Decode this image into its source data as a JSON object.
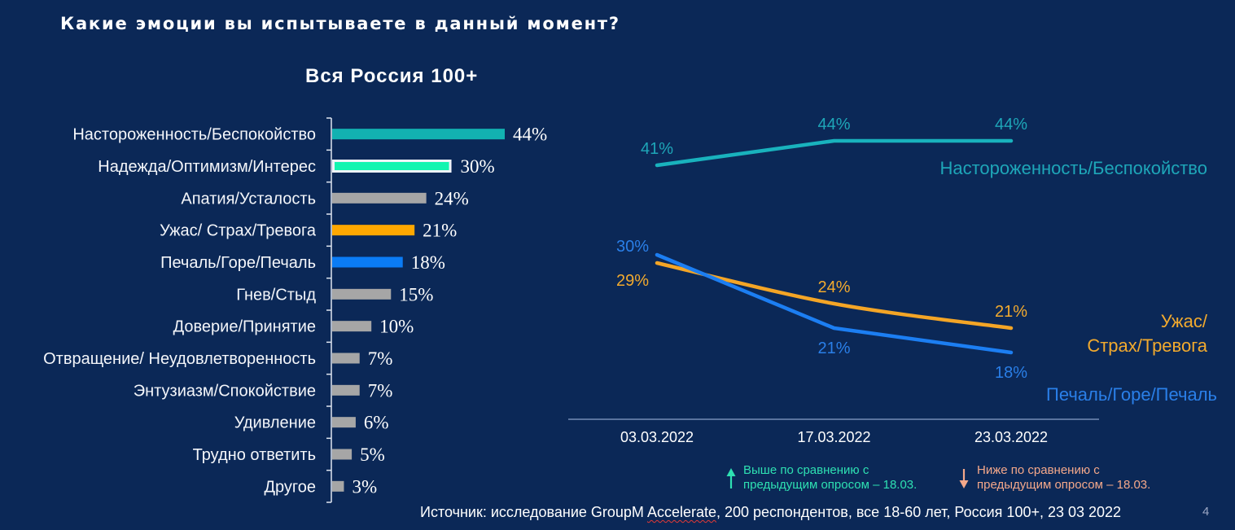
{
  "slide": {
    "title": "Какие эмоции вы испытываете в данный момент?",
    "source_prefix": "Источник: исследование GroupM ",
    "source_underlined": "Accelerate",
    "source_suffix": ", 200 респондентов, все 18-60 лет, Россия 100+, 23 03 2022",
    "page_number": "4",
    "background": "#0b2857"
  },
  "legend": {
    "up": {
      "icon": "arrow-up-icon",
      "line1": "Выше по сравнению с",
      "line2": "предыдущим опросом – 18.03.",
      "color": "#2ee0b2"
    },
    "down": {
      "icon": "arrow-down-icon",
      "line1": "Ниже по сравнению с",
      "line2": "предыдущим опросом – 18.03.",
      "color": "#f4a88a"
    }
  },
  "chart_data": [
    {
      "type": "bar",
      "orientation": "horizontal",
      "title": "Вся Россия 100+",
      "xlabel": "",
      "ylabel": "",
      "xlim": [
        0,
        44
      ],
      "grid": false,
      "categories": [
        "Настороженность/Беспокойство",
        "Надежда/Оптимизм/Интерес",
        "Апатия/Усталость",
        "Ужас/ Страх/Тревога",
        "Печаль/Горе/Печаль",
        "Гнев/Стыд",
        "Доверие/Принятие",
        "Отвращение/ Неудовлетворенность",
        "Энтузиазм/Спокойствие",
        "Удивление",
        "Трудно ответить",
        "Другое"
      ],
      "values": [
        44,
        30,
        24,
        21,
        18,
        15,
        10,
        7,
        7,
        6,
        5,
        3
      ],
      "value_labels": [
        "44%",
        "30%",
        "24%",
        "21%",
        "18%",
        "15%",
        "10%",
        "7%",
        "7%",
        "6%",
        "5%",
        "3%"
      ],
      "colors": [
        "#12b1b1",
        "#12f5b0",
        "#a6a6a6",
        "#ffa800",
        "#0b7cf5",
        "#a6a6a6",
        "#a6a6a6",
        "#a6a6a6",
        "#a6a6a6",
        "#a6a6a6",
        "#a6a6a6",
        "#a6a6a6"
      ],
      "outlined": [
        false,
        true,
        false,
        false,
        false,
        false,
        false,
        false,
        false,
        false,
        false,
        false
      ],
      "outline_color": "#eef3f8",
      "axis_color": "#dfe6f0"
    },
    {
      "type": "line",
      "x": [
        "03.03.2022",
        "17.03.2022",
        "23.03.2022"
      ],
      "ylim": [
        10,
        48
      ],
      "grid": false,
      "axis_color": "#8aa0c8",
      "series": [
        {
          "name": "Настороженность/Беспокойство",
          "label_lines": [
            "Настороженность/Беспокойство"
          ],
          "values": [
            41,
            44,
            44
          ],
          "labels": [
            "41%",
            "44%",
            "44%"
          ],
          "label_positions": [
            "above",
            "above",
            "above"
          ],
          "color": "#19b2bd",
          "text_color": "#1ea6b8",
          "smooth": false
        },
        {
          "name": "Ужас/ Страх/Тревога",
          "label_lines": [
            "Ужас/",
            "Страх/Тревога"
          ],
          "values": [
            29,
            24,
            21
          ],
          "labels": [
            "29%",
            "24%",
            "21%"
          ],
          "label_positions": [
            "left-below",
            "above",
            "above"
          ],
          "color": "#f4a526",
          "text_color": "#f2aa2e",
          "smooth": true
        },
        {
          "name": "Печаль/Горе/Печаль",
          "label_lines": [
            "Печаль/Горе/Печаль"
          ],
          "values": [
            30,
            21,
            18
          ],
          "labels": [
            "30%",
            "21%",
            "18%"
          ],
          "label_positions": [
            "left-above",
            "below",
            "below"
          ],
          "color": "#1c7ef2",
          "text_color": "#2a7fe8",
          "smooth": false
        }
      ]
    }
  ]
}
